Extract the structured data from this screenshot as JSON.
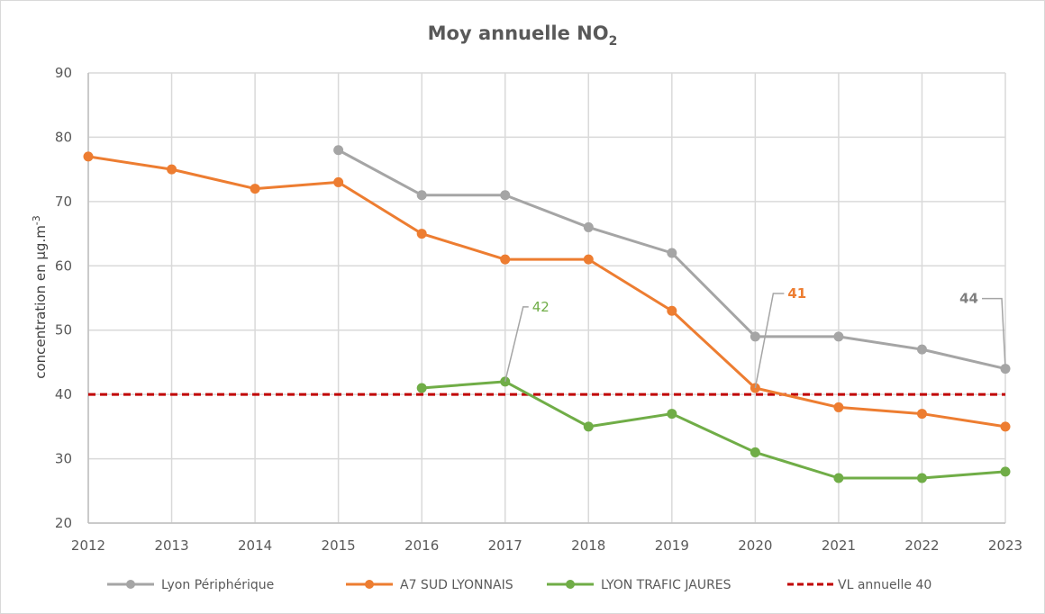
{
  "chart_data": {
    "type": "line",
    "title": "Moy annuelle NO",
    "title_subscript": "2",
    "xlabel": "",
    "ylabel": "concentration en µg.m",
    "ylabel_superscript": "-3",
    "categories": [
      "2012",
      "2013",
      "2014",
      "2015",
      "2016",
      "2017",
      "2018",
      "2019",
      "2020",
      "2021",
      "2022",
      "2023"
    ],
    "ylim": [
      20,
      90
    ],
    "yticks": [
      20,
      30,
      40,
      50,
      60,
      70,
      80,
      90
    ],
    "grid": true,
    "legend_position": "bottom",
    "series": [
      {
        "name": "Lyon Périphérique",
        "color": "#a5a5a5",
        "values": [
          null,
          null,
          null,
          78,
          71,
          71,
          66,
          62,
          49,
          49,
          47,
          44
        ],
        "labels": [
          {
            "category": "2023",
            "text": "44",
            "color": "#7f7f7f",
            "bold": true
          }
        ]
      },
      {
        "name": "A7 SUD LYONNAIS",
        "color": "#ed7d31",
        "values": [
          77,
          75,
          72,
          73,
          65,
          61,
          61,
          53,
          41,
          38,
          37,
          35
        ],
        "labels": [
          {
            "category": "2020",
            "text": "41",
            "color": "#ed7d31",
            "bold": true
          }
        ]
      },
      {
        "name": "LYON TRAFIC JAURES",
        "color": "#70ad47",
        "values": [
          null,
          null,
          null,
          null,
          41,
          42,
          35,
          37,
          31,
          27,
          27,
          28
        ],
        "labels": [
          {
            "category": "2017",
            "text": "42",
            "color": "#70ad47",
            "bold": false
          }
        ]
      }
    ],
    "reference_lines": [
      {
        "name": "VL annuelle 40",
        "value": 40,
        "color": "#c00000",
        "style": "dashed"
      }
    ]
  }
}
